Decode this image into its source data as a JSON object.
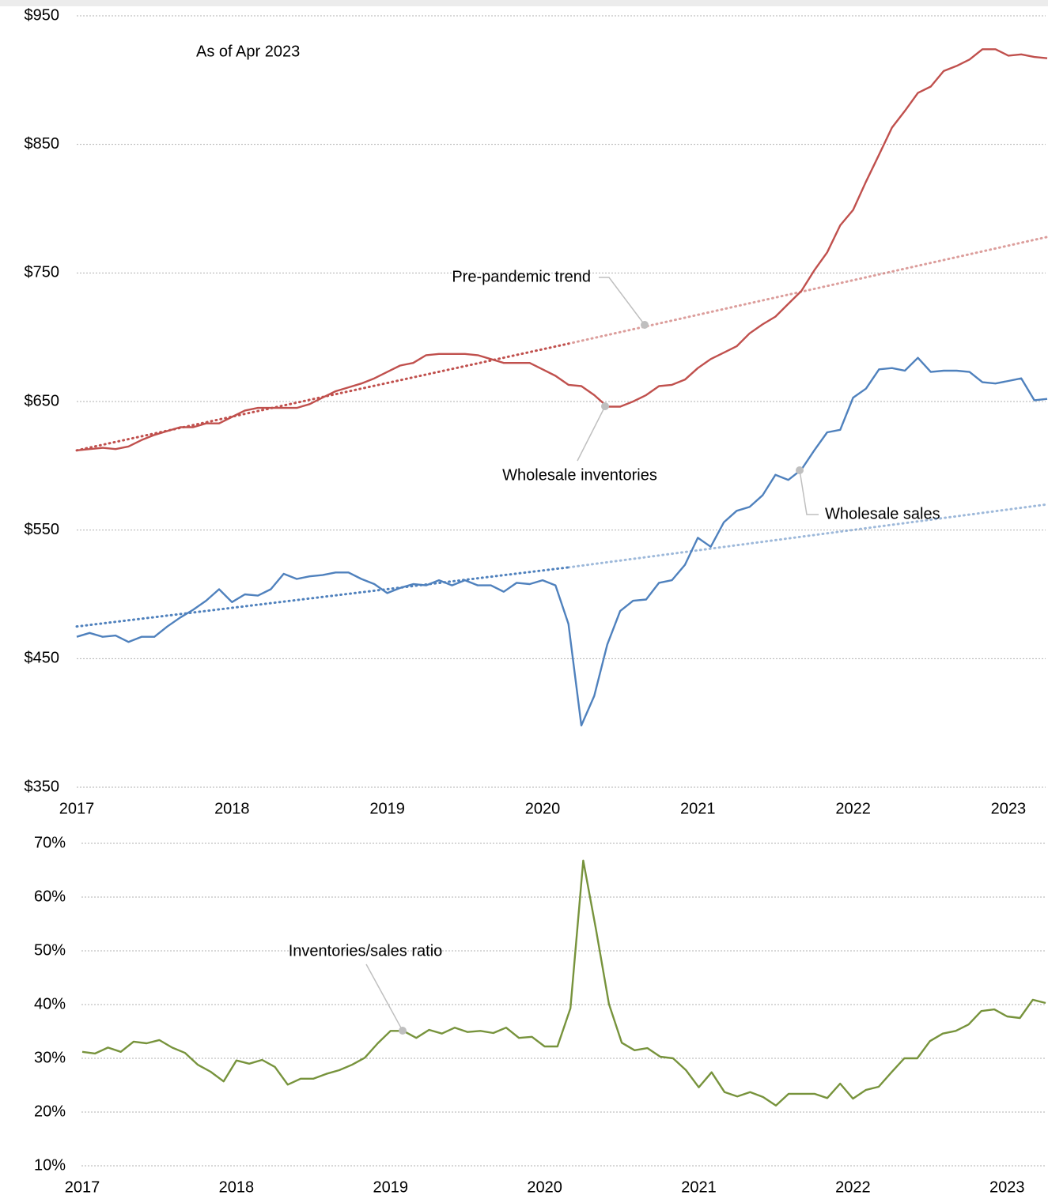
{
  "chart_data": [
    {
      "type": "line",
      "note": "As of Apr 2023",
      "x": [
        2017,
        2017.083,
        2017.167,
        2017.25,
        2017.333,
        2017.417,
        2017.5,
        2017.583,
        2017.667,
        2017.75,
        2017.833,
        2017.917,
        2018,
        2018.083,
        2018.167,
        2018.25,
        2018.333,
        2018.417,
        2018.5,
        2018.583,
        2018.667,
        2018.75,
        2018.833,
        2018.917,
        2019,
        2019.083,
        2019.167,
        2019.25,
        2019.333,
        2019.417,
        2019.5,
        2019.583,
        2019.667,
        2019.75,
        2019.833,
        2019.917,
        2020,
        2020.083,
        2020.167,
        2020.25,
        2020.333,
        2020.417,
        2020.5,
        2020.583,
        2020.667,
        2020.75,
        2020.833,
        2020.917,
        2021,
        2021.083,
        2021.167,
        2021.25,
        2021.333,
        2021.417,
        2021.5,
        2021.583,
        2021.667,
        2021.75,
        2021.833,
        2021.917,
        2022,
        2022.083,
        2022.167,
        2022.25,
        2022.333,
        2022.417,
        2022.5,
        2022.583,
        2022.667,
        2022.75,
        2022.833,
        2022.917,
        2023,
        2023.083,
        2023.167,
        2023.25
      ],
      "xlim": [
        2017,
        2023.25
      ],
      "xticks": [
        2017,
        2018,
        2019,
        2020,
        2021,
        2022,
        2023
      ],
      "ylim": [
        350,
        950
      ],
      "yticks": [
        {
          "value": 350,
          "label": "$350"
        },
        {
          "value": 450,
          "label": "$450"
        },
        {
          "value": 550,
          "label": "$550"
        },
        {
          "value": 650,
          "label": "$650"
        },
        {
          "value": 750,
          "label": "$750"
        },
        {
          "value": 850,
          "label": "$850"
        },
        {
          "value": 950,
          "label": "$950"
        }
      ],
      "grid": true,
      "series": [
        {
          "name": "Wholesale inventories",
          "color": "#c0504d",
          "values": [
            612,
            613,
            614,
            613,
            615,
            620,
            624,
            627,
            630,
            630,
            633,
            633,
            638,
            643,
            645,
            645,
            645,
            645,
            648,
            653,
            658,
            661,
            664,
            668,
            673,
            678,
            680,
            686,
            687,
            687,
            687,
            686,
            683,
            680,
            680,
            680,
            675,
            670,
            663,
            662,
            655,
            646,
            646,
            650,
            655,
            662,
            663,
            667,
            676,
            683,
            688,
            693,
            703,
            710,
            716,
            726,
            736,
            752,
            766,
            787,
            799,
            821,
            842,
            863,
            876,
            890,
            895,
            907,
            911,
            916,
            924,
            924,
            919,
            920,
            918,
            917
          ]
        },
        {
          "name": "Wholesale sales",
          "color": "#4f81bd",
          "values": [
            467,
            470,
            467,
            468,
            463,
            467,
            467,
            475,
            482,
            488,
            495,
            504,
            494,
            500,
            499,
            504,
            516,
            512,
            514,
            515,
            517,
            517,
            512,
            508,
            501,
            505,
            508,
            507,
            511,
            507,
            511,
            507,
            507,
            502,
            509,
            508,
            511,
            507,
            477,
            398,
            421,
            461,
            487,
            495,
            496,
            509,
            511,
            523,
            544,
            537,
            556,
            565,
            568,
            577,
            593,
            589,
            597,
            612,
            626,
            628,
            653,
            660,
            675,
            676,
            674,
            684,
            673,
            674,
            674,
            673,
            665,
            664,
            666,
            668,
            651,
            652
          ]
        },
        {
          "name": "Pre-pandemic trend",
          "color": "#c0504d",
          "style": "dotted",
          "x": [
            2017,
            2020.167,
            2023.25
          ],
          "values": [
            612,
            695,
            778
          ]
        },
        {
          "color": "#4f81bd",
          "style": "dotted",
          "x": [
            2017,
            2020.167,
            2023.25
          ],
          "values": [
            475,
            521,
            570
          ]
        }
      ]
    },
    {
      "type": "line",
      "x": [
        2017,
        2017.083,
        2017.167,
        2017.25,
        2017.333,
        2017.417,
        2017.5,
        2017.583,
        2017.667,
        2017.75,
        2017.833,
        2017.917,
        2018,
        2018.083,
        2018.167,
        2018.25,
        2018.333,
        2018.417,
        2018.5,
        2018.583,
        2018.667,
        2018.75,
        2018.833,
        2018.917,
        2019,
        2019.083,
        2019.167,
        2019.25,
        2019.333,
        2019.417,
        2019.5,
        2019.583,
        2019.667,
        2019.75,
        2019.833,
        2019.917,
        2020,
        2020.083,
        2020.167,
        2020.25,
        2020.333,
        2020.417,
        2020.5,
        2020.583,
        2020.667,
        2020.75,
        2020.833,
        2020.917,
        2021,
        2021.083,
        2021.167,
        2021.25,
        2021.333,
        2021.417,
        2021.5,
        2021.583,
        2021.667,
        2021.75,
        2021.833,
        2021.917,
        2022,
        2022.083,
        2022.167,
        2022.25,
        2022.333,
        2022.417,
        2022.5,
        2022.583,
        2022.667,
        2022.75,
        2022.833,
        2022.917,
        2023,
        2023.083,
        2023.167,
        2023.25
      ],
      "xlim": [
        2017,
        2023.25
      ],
      "xticks": [
        2017,
        2018,
        2019,
        2020,
        2021,
        2022,
        2023
      ],
      "ylim": [
        10,
        70
      ],
      "yticks": [
        {
          "value": 10,
          "label": "10%"
        },
        {
          "value": 20,
          "label": "20%"
        },
        {
          "value": 30,
          "label": "30%"
        },
        {
          "value": 40,
          "label": "40%"
        },
        {
          "value": 50,
          "label": "50%"
        },
        {
          "value": 60,
          "label": "60%"
        },
        {
          "value": 70,
          "label": "70%"
        }
      ],
      "grid": true,
      "series": [
        {
          "name": "Inventories/sales ratio",
          "color": "#77933c",
          "values": [
            31.2,
            30.9,
            32.0,
            31.2,
            33.1,
            32.8,
            33.4,
            32.0,
            31.0,
            28.8,
            27.5,
            25.7,
            29.6,
            29.0,
            29.7,
            28.4,
            25.1,
            26.2,
            26.2,
            27.1,
            27.8,
            28.8,
            30.1,
            32.8,
            35.1,
            35.1,
            33.8,
            35.3,
            34.6,
            35.7,
            34.9,
            35.1,
            34.7,
            35.7,
            33.8,
            34.0,
            32.2,
            32.2,
            39.3,
            66.8,
            54.0,
            40.1,
            32.9,
            31.5,
            31.9,
            30.3,
            30.0,
            27.8,
            24.6,
            27.4,
            23.7,
            22.9,
            23.7,
            22.8,
            21.2,
            23.4,
            23.4,
            23.4,
            22.6,
            25.3,
            22.5,
            24.1,
            24.7,
            27.4,
            30.0,
            30.0,
            33.2,
            34.6,
            35.1,
            36.3,
            38.8,
            39.1,
            37.8,
            37.5,
            40.9,
            40.3
          ]
        }
      ]
    }
  ]
}
